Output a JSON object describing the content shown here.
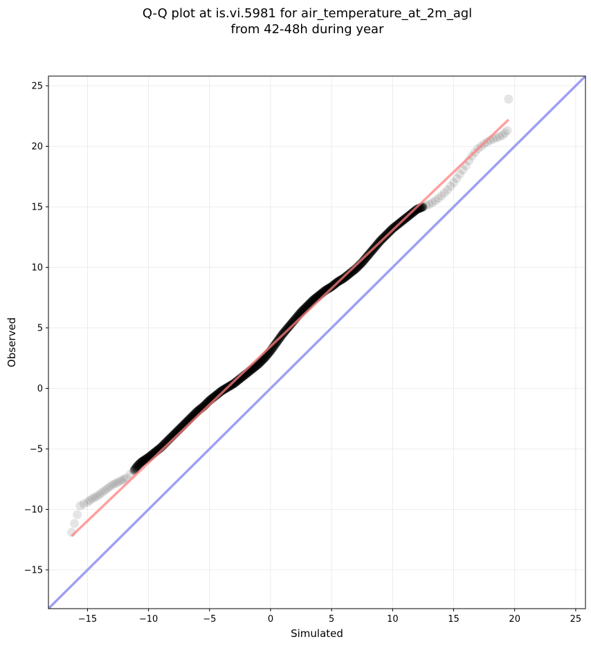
{
  "chart_data": {
    "type": "scatter",
    "title": "Q-Q plot at is.vi.5981 for air_temperature_at_2m_agl\nfrom 42-48h during year",
    "title_lines": [
      "Q-Q plot at is.vi.5981 for air_temperature_at_2m_agl",
      "from 42-48h during year"
    ],
    "xlabel": "Simulated",
    "ylabel": "Observed",
    "xlim": [
      -18.2,
      25.8
    ],
    "ylim": [
      -18.2,
      25.8
    ],
    "xticks": [
      -15,
      -10,
      -5,
      0,
      5,
      10,
      15,
      20,
      25
    ],
    "yticks": [
      -15,
      -10,
      -5,
      0,
      5,
      10,
      15,
      20,
      25
    ],
    "xtick_labels": [
      "−15",
      "−10",
      "−5",
      "0",
      "5",
      "10",
      "15",
      "20",
      "25"
    ],
    "ytick_labels": [
      "−15",
      "−10",
      "−5",
      "0",
      "5",
      "10",
      "15",
      "20",
      "25"
    ],
    "grid": true,
    "quantile_points": {
      "x": [
        -16.3,
        -15.6,
        -15.0,
        -14.6,
        -14.2,
        -13.8,
        -13.4,
        -13.0,
        -12.6,
        -12.2,
        -11.8,
        -11.5,
        -11.2,
        -10.9,
        -10.6,
        -10.3,
        -10.0,
        -9.5,
        -9.0,
        -8.5,
        -8.0,
        -7.5,
        -7.0,
        -6.5,
        -6.0,
        -5.5,
        -5.0,
        -4.5,
        -4.0,
        -3.5,
        -3.0,
        -2.5,
        -2.0,
        -1.5,
        -1.0,
        -0.5,
        0.0,
        0.5,
        1.0,
        1.5,
        2.0,
        2.5,
        3.0,
        3.5,
        4.0,
        4.5,
        5.0,
        5.5,
        6.0,
        6.5,
        7.0,
        7.5,
        8.0,
        8.5,
        9.0,
        9.5,
        10.0,
        10.5,
        11.0,
        11.5,
        12.0,
        12.5,
        13.0,
        13.5,
        14.0,
        14.5,
        15.0,
        15.5,
        16.0,
        16.5,
        17.0,
        17.5,
        18.0,
        18.5,
        19.0,
        19.4,
        19.5
      ],
      "y": [
        -11.9,
        -9.7,
        -9.4,
        -9.1,
        -8.9,
        -8.6,
        -8.3,
        -8.0,
        -7.8,
        -7.6,
        -7.4,
        -7.1,
        -6.8,
        -6.4,
        -6.1,
        -5.9,
        -5.7,
        -5.3,
        -4.9,
        -4.4,
        -3.9,
        -3.4,
        -2.9,
        -2.4,
        -1.9,
        -1.5,
        -1.0,
        -0.6,
        -0.2,
        0.1,
        0.4,
        0.8,
        1.2,
        1.6,
        2.0,
        2.5,
        3.1,
        3.8,
        4.5,
        5.1,
        5.7,
        6.3,
        6.8,
        7.3,
        7.7,
        8.1,
        8.4,
        8.8,
        9.1,
        9.5,
        9.9,
        10.4,
        11.0,
        11.6,
        12.2,
        12.7,
        13.2,
        13.6,
        14.0,
        14.4,
        14.8,
        15.0,
        15.2,
        15.5,
        15.9,
        16.4,
        17.0,
        17.7,
        18.4,
        19.2,
        19.8,
        20.2,
        20.5,
        20.7,
        20.9,
        21.3,
        23.9
      ],
      "color": "#000000",
      "base_alpha": 0.1
    },
    "fit_line": {
      "x": [
        -16.3,
        19.5
      ],
      "y": [
        -12.2,
        22.2
      ],
      "color": "#ff7f7f"
    },
    "identity_line": {
      "x": [
        -18.2,
        25.8
      ],
      "y": [
        -18.2,
        25.8
      ],
      "color": "#9f9ff5"
    }
  }
}
